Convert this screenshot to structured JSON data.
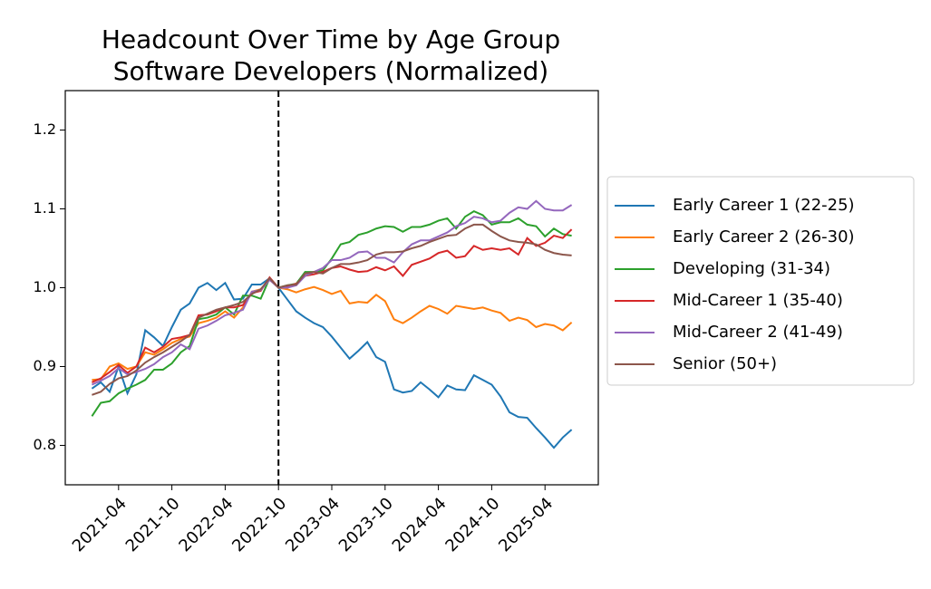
{
  "chart_data": {
    "type": "line",
    "title": "Headcount Over Time by Age Group",
    "subtitle": "Software Developers (Normalized)",
    "x": [
      "2021-01",
      "2021-02",
      "2021-03",
      "2021-04",
      "2021-05",
      "2021-06",
      "2021-07",
      "2021-08",
      "2021-09",
      "2021-10",
      "2021-11",
      "2021-12",
      "2022-01",
      "2022-02",
      "2022-03",
      "2022-04",
      "2022-05",
      "2022-06",
      "2022-07",
      "2022-08",
      "2022-09",
      "2022-10",
      "2022-11",
      "2022-12",
      "2023-01",
      "2023-02",
      "2023-03",
      "2023-04",
      "2023-05",
      "2023-06",
      "2023-07",
      "2023-08",
      "2023-09",
      "2023-10",
      "2023-11",
      "2023-12",
      "2024-01",
      "2024-02",
      "2024-03",
      "2024-04",
      "2024-05",
      "2024-06",
      "2024-07",
      "2024-08",
      "2024-09",
      "2024-10",
      "2024-11",
      "2024-12",
      "2025-01",
      "2025-02",
      "2025-03",
      "2025-04",
      "2025-05",
      "2025-06",
      "2025-07"
    ],
    "series": [
      {
        "name": "Early Career 1 (22-25)",
        "color": "#1f77b4",
        "values": [
          0.872,
          0.88,
          0.868,
          0.9,
          0.866,
          0.89,
          0.946,
          0.937,
          0.926,
          0.95,
          0.972,
          0.98,
          1.0,
          1.006,
          0.997,
          1.006,
          0.985,
          0.986,
          1.004,
          1.004,
          1.012,
          1.0,
          0.985,
          0.97,
          0.962,
          0.955,
          0.95,
          0.938,
          0.924,
          0.91,
          0.92,
          0.931,
          0.912,
          0.906,
          0.871,
          0.867,
          0.869,
          0.88,
          0.871,
          0.861,
          0.876,
          0.871,
          0.87,
          0.889,
          0.883,
          0.877,
          0.862,
          0.842,
          0.836,
          0.835,
          0.822,
          0.81,
          0.797,
          0.81,
          0.82
        ]
      },
      {
        "name": "Early Career 2 (26-30)",
        "color": "#ff7f0e",
        "values": [
          0.883,
          0.884,
          0.9,
          0.904,
          0.897,
          0.9,
          0.918,
          0.915,
          0.922,
          0.93,
          0.935,
          0.938,
          0.955,
          0.958,
          0.962,
          0.97,
          0.962,
          0.975,
          0.995,
          0.998,
          1.01,
          1.0,
          0.998,
          0.994,
          0.998,
          1.001,
          0.997,
          0.992,
          0.996,
          0.98,
          0.982,
          0.981,
          0.991,
          0.983,
          0.96,
          0.955,
          0.962,
          0.97,
          0.977,
          0.973,
          0.967,
          0.977,
          0.975,
          0.973,
          0.975,
          0.971,
          0.968,
          0.958,
          0.962,
          0.959,
          0.95,
          0.954,
          0.952,
          0.946,
          0.956
        ]
      },
      {
        "name": "Developing (31-34)",
        "color": "#2ca02c",
        "values": [
          0.837,
          0.854,
          0.856,
          0.866,
          0.872,
          0.877,
          0.883,
          0.896,
          0.896,
          0.904,
          0.918,
          0.926,
          0.96,
          0.962,
          0.966,
          0.975,
          0.966,
          0.99,
          0.99,
          0.986,
          1.012,
          1.0,
          1.003,
          1.005,
          1.02,
          1.02,
          1.022,
          1.037,
          1.055,
          1.058,
          1.067,
          1.07,
          1.075,
          1.078,
          1.077,
          1.071,
          1.077,
          1.077,
          1.08,
          1.085,
          1.088,
          1.075,
          1.09,
          1.097,
          1.092,
          1.08,
          1.083,
          1.083,
          1.088,
          1.08,
          1.078,
          1.065,
          1.075,
          1.068,
          1.066
        ]
      },
      {
        "name": "Mid-Career 1 (35-40)",
        "color": "#d62728",
        "values": [
          0.88,
          0.885,
          0.893,
          0.902,
          0.892,
          0.9,
          0.924,
          0.918,
          0.925,
          0.935,
          0.937,
          0.94,
          0.965,
          0.966,
          0.97,
          0.975,
          0.975,
          0.978,
          0.993,
          0.996,
          1.013,
          1.0,
          1.002,
          1.005,
          1.015,
          1.017,
          1.02,
          1.025,
          1.027,
          1.023,
          1.02,
          1.021,
          1.026,
          1.022,
          1.027,
          1.015,
          1.029,
          1.033,
          1.037,
          1.044,
          1.047,
          1.038,
          1.04,
          1.053,
          1.048,
          1.05,
          1.048,
          1.05,
          1.042,
          1.063,
          1.053,
          1.057,
          1.066,
          1.063,
          1.074
        ]
      },
      {
        "name": "Mid-Career 2 (41-49)",
        "color": "#9467bd",
        "values": [
          0.877,
          0.882,
          0.888,
          0.898,
          0.89,
          0.893,
          0.897,
          0.903,
          0.912,
          0.918,
          0.928,
          0.922,
          0.948,
          0.952,
          0.958,
          0.965,
          0.968,
          0.972,
          0.995,
          0.997,
          1.01,
          1.0,
          1.0,
          1.003,
          1.015,
          1.02,
          1.025,
          1.035,
          1.035,
          1.038,
          1.045,
          1.046,
          1.038,
          1.038,
          1.032,
          1.045,
          1.055,
          1.06,
          1.06,
          1.065,
          1.07,
          1.078,
          1.082,
          1.09,
          1.088,
          1.083,
          1.085,
          1.095,
          1.102,
          1.1,
          1.11,
          1.1,
          1.098,
          1.098,
          1.105
        ]
      },
      {
        "name": "Senior (50+)",
        "color": "#8c564b",
        "values": [
          0.864,
          0.868,
          0.878,
          0.885,
          0.888,
          0.895,
          0.905,
          0.912,
          0.918,
          0.925,
          0.932,
          0.94,
          0.962,
          0.967,
          0.972,
          0.975,
          0.978,
          0.982,
          0.992,
          0.998,
          1.012,
          1.0,
          1.003,
          1.004,
          1.018,
          1.02,
          1.018,
          1.025,
          1.03,
          1.03,
          1.032,
          1.035,
          1.042,
          1.045,
          1.045,
          1.046,
          1.05,
          1.053,
          1.058,
          1.062,
          1.066,
          1.067,
          1.075,
          1.08,
          1.08,
          1.072,
          1.065,
          1.06,
          1.058,
          1.057,
          1.055,
          1.048,
          1.044,
          1.042,
          1.041
        ]
      }
    ],
    "xlim": [
      "2020-10",
      "2025-10"
    ],
    "xticks": [
      "2021-04",
      "2021-10",
      "2022-04",
      "2022-10",
      "2023-04",
      "2023-10",
      "2024-04",
      "2024-10",
      "2025-04"
    ],
    "ylim": [
      0.75,
      1.25
    ],
    "yticks": [
      0.8,
      0.9,
      {
        "value": 1,
        "label": "1.0"
      },
      1.1,
      1.2
    ],
    "vline": "2022-10",
    "grid": false,
    "legend": "right"
  }
}
